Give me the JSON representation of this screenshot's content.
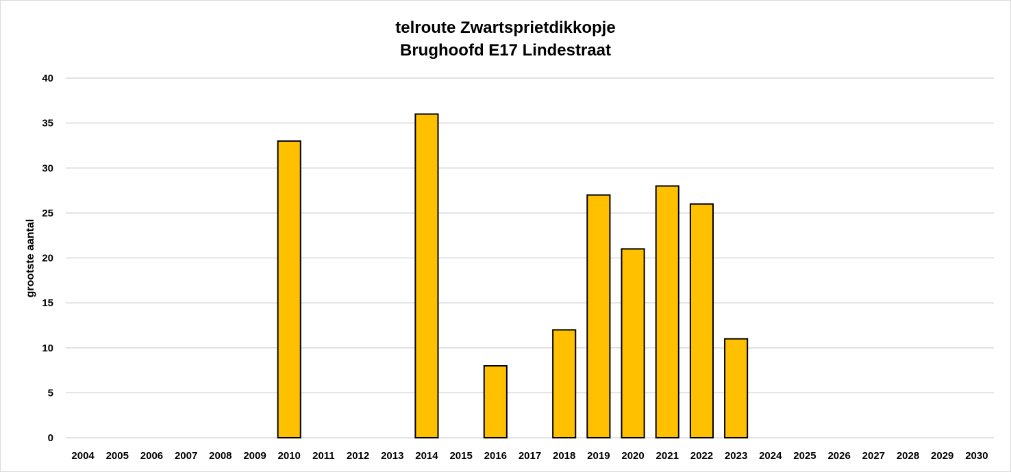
{
  "chart_data": {
    "type": "bar",
    "title_lines": [
      "telroute Zwartsprietdikkopje",
      "Brughoofd E17 Lindestraat"
    ],
    "xlabel": "",
    "ylabel": "grootste aantal",
    "categories": [
      "2004",
      "2005",
      "2006",
      "2007",
      "2008",
      "2009",
      "2010",
      "2011",
      "2012",
      "2013",
      "2014",
      "2015",
      "2016",
      "2017",
      "2018",
      "2019",
      "2020",
      "2021",
      "2022",
      "2023",
      "2024",
      "2025",
      "2026",
      "2027",
      "2028",
      "2029",
      "2030"
    ],
    "values": [
      null,
      null,
      null,
      null,
      null,
      null,
      33,
      null,
      null,
      null,
      36,
      null,
      8,
      null,
      12,
      27,
      21,
      28,
      26,
      11,
      null,
      null,
      null,
      null,
      null,
      null,
      null
    ],
    "ylim": [
      0,
      40
    ],
    "yticks": [
      0,
      5,
      10,
      15,
      20,
      25,
      30,
      35,
      40
    ],
    "grid": true,
    "legend": "none",
    "colors": {
      "bar_fill": "#FFC000",
      "bar_stroke": "#000000",
      "grid": "#d9d9d9"
    }
  }
}
